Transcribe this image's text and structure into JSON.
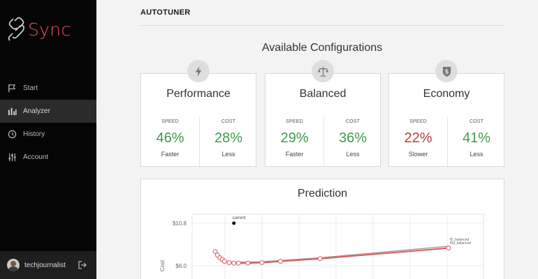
{
  "sidebar": {
    "logo_text": "Sync",
    "items": [
      {
        "label": "Start",
        "icon": "flag-icon"
      },
      {
        "label": "Analyzer",
        "icon": "bar-chart-icon",
        "active": true
      },
      {
        "label": "History",
        "icon": "clock-icon"
      },
      {
        "label": "Account",
        "icon": "sliders-icon"
      }
    ],
    "user": {
      "name": "techjournalist"
    }
  },
  "header": {
    "title": "AUTOTUNER"
  },
  "configs": {
    "title": "Available Configurations",
    "cards": [
      {
        "name": "Performance",
        "icon": "lightning-icon",
        "speed": {
          "label": "SPEED",
          "value": "46%",
          "note": "Faster",
          "color": "#3f9a4a"
        },
        "cost": {
          "label": "COST",
          "value": "28%",
          "note": "Less",
          "color": "#3f9a4a"
        }
      },
      {
        "name": "Balanced",
        "icon": "scale-icon",
        "speed": {
          "label": "SPEED",
          "value": "29%",
          "note": "Faster",
          "color": "#3f9a4a"
        },
        "cost": {
          "label": "COST",
          "value": "36%",
          "note": "Less",
          "color": "#3f9a4a"
        }
      },
      {
        "name": "Economy",
        "icon": "dollar-shield-icon",
        "speed": {
          "label": "SPEED",
          "value": "22%",
          "note": "Slower",
          "color": "#c0393b"
        },
        "cost": {
          "label": "COST",
          "value": "41%",
          "note": "Less",
          "color": "#3f9a4a"
        }
      }
    ]
  },
  "prediction": {
    "title": "Prediction",
    "chart_data": {
      "type": "line",
      "ylabel": "Cost",
      "y_ticks": [
        "$10.8",
        "$6.0"
      ],
      "current_label": "current",
      "series_labels": [
        "f5_balanced",
        "f5d_balanced"
      ],
      "series": [
        {
          "name": "red",
          "color": "#e05a5a",
          "x": [
            0,
            1,
            2,
            3,
            4,
            6,
            8,
            10,
            14,
            20,
            28,
            45,
            100
          ],
          "y": [
            7.6,
            7.2,
            6.9,
            6.7,
            6.5,
            6.35,
            6.3,
            6.3,
            6.3,
            6.35,
            6.5,
            6.8,
            8.0
          ]
        },
        {
          "name": "gray",
          "color": "#9a9a9a",
          "x": [
            6,
            20,
            45,
            100
          ],
          "y": [
            6.4,
            6.45,
            6.9,
            8.2
          ]
        }
      ],
      "current_point": {
        "x": 8,
        "y": 10.8
      }
    }
  },
  "colors": {
    "accent": "#e8575a",
    "positive": "#3f9a4a",
    "negative": "#c0393b"
  }
}
